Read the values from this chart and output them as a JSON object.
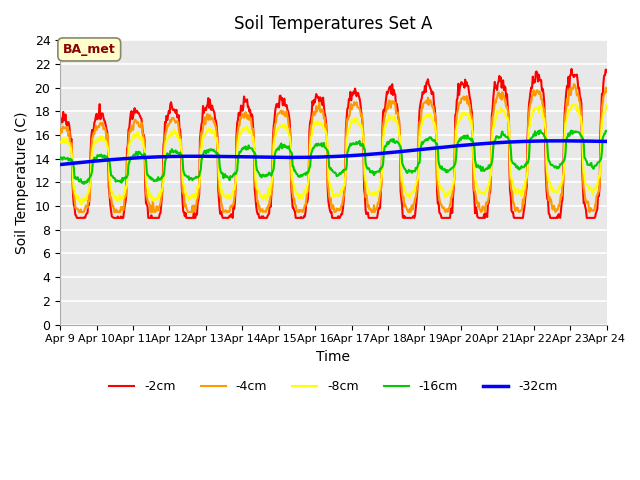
{
  "title": "Soil Temperatures Set A",
  "xlabel": "Time",
  "ylabel": "Soil Temperature (C)",
  "ylim": [
    0,
    24
  ],
  "yticks": [
    0,
    2,
    4,
    6,
    8,
    10,
    12,
    14,
    16,
    18,
    20,
    22,
    24
  ],
  "xtick_labels": [
    "Apr 9",
    "Apr 10",
    "Apr 11",
    "Apr 12",
    "Apr 13",
    "Apr 14",
    "Apr 15",
    "Apr 16",
    "Apr 17",
    "Apr 18",
    "Apr 19",
    "Apr 20",
    "Apr 21",
    "Apr 22",
    "Apr 23",
    "Apr 24"
  ],
  "bg_color": "#e8e8e8",
  "fig_color": "#ffffff",
  "grid_color": "#ffffff",
  "annotation_text": "BA_met",
  "annotation_bg": "#ffffcc",
  "annotation_fg": "#8b0000",
  "legend_entries": [
    "-2cm",
    "-4cm",
    "-8cm",
    "-16cm",
    "-32cm"
  ],
  "line_colors": [
    "#ff0000",
    "#ff9900",
    "#ffff00",
    "#00cc00",
    "#0000ff"
  ],
  "line_widths": [
    1.5,
    1.5,
    1.5,
    1.5,
    2.5
  ],
  "n_days": 15,
  "pts_per_day": 48
}
